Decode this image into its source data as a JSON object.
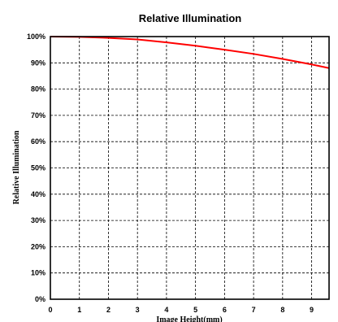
{
  "chart_data": {
    "type": "line",
    "title": "Relative Illumination",
    "xlabel": "Image Height(mm)",
    "ylabel": "Relative Illumination",
    "xlim": [
      0,
      9.6
    ],
    "ylim": [
      0,
      100
    ],
    "x_ticks": [
      "0",
      "1",
      "2",
      "3",
      "4",
      "5",
      "6",
      "7",
      "8",
      "9"
    ],
    "y_ticks": [
      "0%",
      "10%",
      "20%",
      "30%",
      "40%",
      "50%",
      "60%",
      "70%",
      "80%",
      "90%",
      "100%"
    ],
    "grid": true,
    "colors": {
      "series": "#ff0000"
    },
    "series": [
      {
        "x": [
          0,
          1,
          2,
          3,
          4,
          5,
          6,
          7,
          8,
          9,
          9.6
        ],
        "values": [
          100,
          99.9,
          99.5,
          98.9,
          97.8,
          96.5,
          95,
          93.4,
          91.5,
          89.4,
          88
        ]
      }
    ]
  }
}
